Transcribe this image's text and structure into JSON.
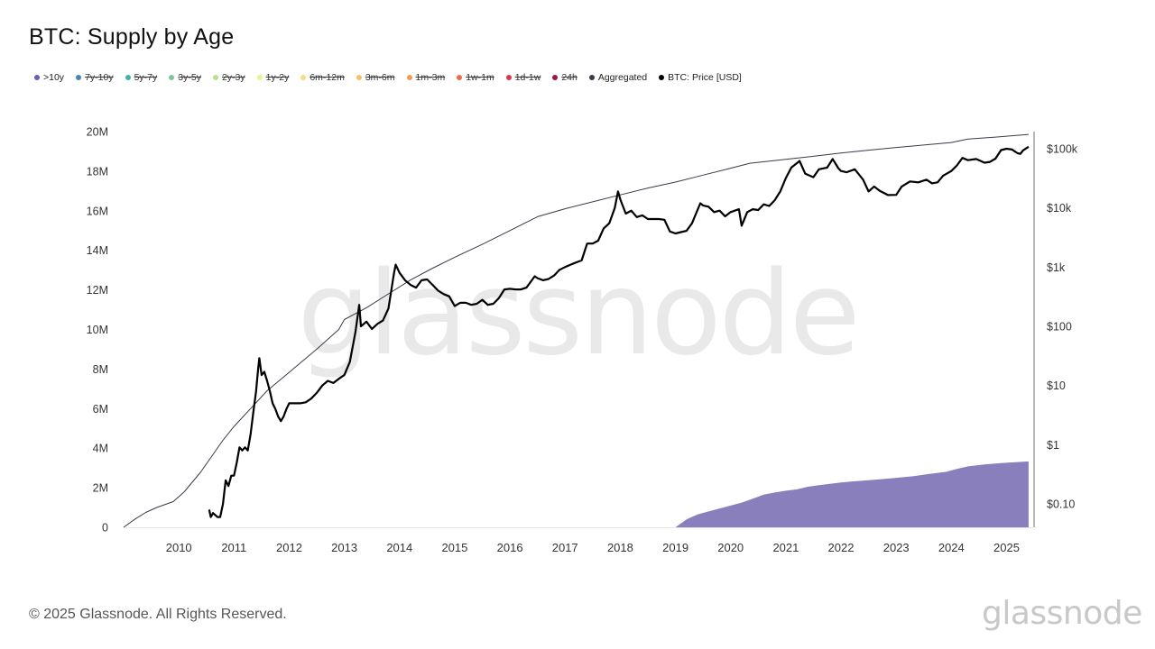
{
  "header": {
    "title": "BTC: Supply by Age"
  },
  "legend": [
    {
      "label": ">10y",
      "color": "#6a5fb0",
      "enabled": true
    },
    {
      "label": "7y-10y",
      "color": "#4a84b8",
      "enabled": false
    },
    {
      "label": "5y-7y",
      "color": "#3fb3a8",
      "enabled": false
    },
    {
      "label": "3y-5y",
      "color": "#79c89a",
      "enabled": false
    },
    {
      "label": "2y-3y",
      "color": "#b7e08c",
      "enabled": false
    },
    {
      "label": "1y-2y",
      "color": "#eef28e",
      "enabled": false
    },
    {
      "label": "6m-12m",
      "color": "#f8dc84",
      "enabled": false
    },
    {
      "label": "3m-6m",
      "color": "#f7bf6a",
      "enabled": false
    },
    {
      "label": "1m-3m",
      "color": "#f59a57",
      "enabled": false
    },
    {
      "label": "1w-1m",
      "color": "#ee6a4a",
      "enabled": false
    },
    {
      "label": "1d-1w",
      "color": "#d9394a",
      "enabled": false
    },
    {
      "label": "24h",
      "color": "#a0154a",
      "enabled": false
    },
    {
      "label": "Aggregated",
      "color": "#3a3a4a",
      "enabled": true
    },
    {
      "label": "BTC: Price [USD]",
      "color": "#000000",
      "enabled": true
    }
  ],
  "watermark": "glassnode",
  "footer": {
    "copyright": "© 2025 Glassnode. All Rights Reserved.",
    "logo": "glassnode"
  },
  "chart_data": {
    "type": "area",
    "title": "BTC: Supply by Age",
    "xlabel": "",
    "ylabel": "",
    "x_ticks": [
      "2010",
      "2011",
      "2012",
      "2013",
      "2014",
      "2015",
      "2016",
      "2017",
      "2018",
      "2019",
      "2020",
      "2021",
      "2022",
      "2023",
      "2024",
      "2025"
    ],
    "y_left_ticks": [
      "0",
      "2M",
      "4M",
      "6M",
      "8M",
      "10M",
      "12M",
      "14M",
      "16M",
      "18M",
      "20M"
    ],
    "y_left_range": [
      0,
      20000000
    ],
    "y_right_ticks": [
      "$0.10",
      "$1",
      "$10",
      "$100",
      "$1k",
      "$10k",
      "$100k"
    ],
    "y_right_range": [
      0.035,
      250000
    ],
    "y_right_scale": "log",
    "grid": false,
    "legend_position": "top-left",
    "series": [
      {
        "name": ">10y",
        "axis": "left",
        "style": "area",
        "color": "#8a7fbd",
        "points": [
          [
            2019.0,
            0
          ],
          [
            2019.2,
            400000
          ],
          [
            2019.4,
            650000
          ],
          [
            2019.6,
            800000
          ],
          [
            2019.8,
            950000
          ],
          [
            2020.0,
            1100000
          ],
          [
            2020.2,
            1250000
          ],
          [
            2020.4,
            1450000
          ],
          [
            2020.6,
            1650000
          ],
          [
            2020.8,
            1760000
          ],
          [
            2021.0,
            1850000
          ],
          [
            2021.2,
            1920000
          ],
          [
            2021.4,
            2050000
          ],
          [
            2021.6,
            2130000
          ],
          [
            2021.8,
            2200000
          ],
          [
            2022.0,
            2270000
          ],
          [
            2022.2,
            2320000
          ],
          [
            2022.5,
            2380000
          ],
          [
            2022.8,
            2450000
          ],
          [
            2023.0,
            2500000
          ],
          [
            2023.3,
            2580000
          ],
          [
            2023.6,
            2700000
          ],
          [
            2023.9,
            2800000
          ],
          [
            2024.1,
            2950000
          ],
          [
            2024.3,
            3080000
          ],
          [
            2024.6,
            3180000
          ],
          [
            2024.9,
            3250000
          ],
          [
            2025.2,
            3300000
          ],
          [
            2025.4,
            3330000
          ]
        ]
      },
      {
        "name": "Aggregated",
        "axis": "left",
        "style": "line",
        "color": "#3a3a4a",
        "points": [
          [
            2009.0,
            0
          ],
          [
            2009.2,
            400000
          ],
          [
            2009.4,
            750000
          ],
          [
            2009.6,
            1000000
          ],
          [
            2009.9,
            1300000
          ],
          [
            2010.1,
            1800000
          ],
          [
            2010.4,
            2800000
          ],
          [
            2010.6,
            3600000
          ],
          [
            2010.8,
            4400000
          ],
          [
            2011.0,
            5100000
          ],
          [
            2011.3,
            6000000
          ],
          [
            2011.6,
            6900000
          ],
          [
            2011.9,
            7600000
          ],
          [
            2012.2,
            8300000
          ],
          [
            2012.5,
            9000000
          ],
          [
            2012.9,
            10000000
          ],
          [
            2013.0,
            10500000
          ],
          [
            2013.4,
            11100000
          ],
          [
            2013.8,
            11800000
          ],
          [
            2014.2,
            12500000
          ],
          [
            2014.6,
            13100000
          ],
          [
            2015.0,
            13650000
          ],
          [
            2015.5,
            14300000
          ],
          [
            2016.0,
            15000000
          ],
          [
            2016.5,
            15700000
          ],
          [
            2017.0,
            16100000
          ],
          [
            2017.5,
            16450000
          ],
          [
            2018.0,
            16800000
          ],
          [
            2018.5,
            17150000
          ],
          [
            2019.0,
            17450000
          ],
          [
            2019.5,
            17800000
          ],
          [
            2020.0,
            18150000
          ],
          [
            2020.35,
            18400000
          ],
          [
            2021.0,
            18600000
          ],
          [
            2021.5,
            18750000
          ],
          [
            2022.0,
            18920000
          ],
          [
            2022.5,
            19060000
          ],
          [
            2023.0,
            19200000
          ],
          [
            2023.5,
            19320000
          ],
          [
            2024.0,
            19450000
          ],
          [
            2024.3,
            19620000
          ],
          [
            2024.8,
            19720000
          ],
          [
            2025.4,
            19860000
          ]
        ]
      },
      {
        "name": "BTC: Price [USD]",
        "axis": "right",
        "style": "line",
        "color": "#000000",
        "points": [
          [
            2010.55,
            0.08
          ],
          [
            2010.58,
            0.06
          ],
          [
            2010.62,
            0.07
          ],
          [
            2010.7,
            0.06
          ],
          [
            2010.75,
            0.06
          ],
          [
            2010.8,
            0.1
          ],
          [
            2010.85,
            0.25
          ],
          [
            2010.9,
            0.2
          ],
          [
            2010.95,
            0.3
          ],
          [
            2011.0,
            0.3
          ],
          [
            2011.05,
            0.5
          ],
          [
            2011.1,
            0.9
          ],
          [
            2011.15,
            0.8
          ],
          [
            2011.2,
            0.9
          ],
          [
            2011.25,
            0.8
          ],
          [
            2011.3,
            1.5
          ],
          [
            2011.35,
            3.5
          ],
          [
            2011.4,
            8
          ],
          [
            2011.44,
            20
          ],
          [
            2011.46,
            29
          ],
          [
            2011.5,
            15
          ],
          [
            2011.55,
            17
          ],
          [
            2011.6,
            12
          ],
          [
            2011.65,
            8
          ],
          [
            2011.7,
            5
          ],
          [
            2011.75,
            4
          ],
          [
            2011.8,
            3
          ],
          [
            2011.85,
            2.5
          ],
          [
            2011.9,
            3
          ],
          [
            2011.95,
            4
          ],
          [
            2012.0,
            5
          ],
          [
            2012.1,
            5
          ],
          [
            2012.2,
            5
          ],
          [
            2012.3,
            5.2
          ],
          [
            2012.4,
            6
          ],
          [
            2012.5,
            7.5
          ],
          [
            2012.6,
            10
          ],
          [
            2012.7,
            12
          ],
          [
            2012.8,
            11
          ],
          [
            2012.9,
            13
          ],
          [
            2013.0,
            15
          ],
          [
            2013.1,
            25
          ],
          [
            2013.2,
            80
          ],
          [
            2013.27,
            230
          ],
          [
            2013.3,
            100
          ],
          [
            2013.4,
            120
          ],
          [
            2013.5,
            90
          ],
          [
            2013.6,
            110
          ],
          [
            2013.7,
            125
          ],
          [
            2013.8,
            200
          ],
          [
            2013.9,
            800
          ],
          [
            2013.93,
            1100
          ],
          [
            2014.0,
            800
          ],
          [
            2014.1,
            600
          ],
          [
            2014.2,
            500
          ],
          [
            2014.3,
            450
          ],
          [
            2014.4,
            600
          ],
          [
            2014.5,
            620
          ],
          [
            2014.6,
            500
          ],
          [
            2014.7,
            400
          ],
          [
            2014.8,
            350
          ],
          [
            2014.9,
            320
          ],
          [
            2015.0,
            220
          ],
          [
            2015.1,
            250
          ],
          [
            2015.2,
            250
          ],
          [
            2015.3,
            230
          ],
          [
            2015.4,
            240
          ],
          [
            2015.5,
            280
          ],
          [
            2015.6,
            230
          ],
          [
            2015.7,
            240
          ],
          [
            2015.8,
            300
          ],
          [
            2015.9,
            420
          ],
          [
            2016.0,
            430
          ],
          [
            2016.1,
            420
          ],
          [
            2016.2,
            420
          ],
          [
            2016.3,
            450
          ],
          [
            2016.45,
            700
          ],
          [
            2016.5,
            650
          ],
          [
            2016.6,
            600
          ],
          [
            2016.7,
            630
          ],
          [
            2016.8,
            720
          ],
          [
            2016.9,
            900
          ],
          [
            2017.0,
            1000
          ],
          [
            2017.1,
            1100
          ],
          [
            2017.2,
            1200
          ],
          [
            2017.3,
            1300
          ],
          [
            2017.4,
            2500
          ],
          [
            2017.5,
            2500
          ],
          [
            2017.6,
            2800
          ],
          [
            2017.7,
            4500
          ],
          [
            2017.8,
            5500
          ],
          [
            2017.9,
            10000
          ],
          [
            2017.96,
            19000
          ],
          [
            2018.0,
            14000
          ],
          [
            2018.1,
            8000
          ],
          [
            2018.2,
            9000
          ],
          [
            2018.3,
            7000
          ],
          [
            2018.4,
            7500
          ],
          [
            2018.5,
            6500
          ],
          [
            2018.6,
            6500
          ],
          [
            2018.7,
            6500
          ],
          [
            2018.8,
            6300
          ],
          [
            2018.9,
            4000
          ],
          [
            2019.0,
            3700
          ],
          [
            2019.1,
            3900
          ],
          [
            2019.2,
            4100
          ],
          [
            2019.3,
            5500
          ],
          [
            2019.45,
            12000
          ],
          [
            2019.5,
            11000
          ],
          [
            2019.6,
            10500
          ],
          [
            2019.7,
            8500
          ],
          [
            2019.8,
            9000
          ],
          [
            2019.9,
            7200
          ],
          [
            2020.0,
            8500
          ],
          [
            2020.15,
            9500
          ],
          [
            2020.2,
            5000
          ],
          [
            2020.3,
            8500
          ],
          [
            2020.4,
            9500
          ],
          [
            2020.5,
            9200
          ],
          [
            2020.6,
            11500
          ],
          [
            2020.7,
            10800
          ],
          [
            2020.8,
            13500
          ],
          [
            2020.9,
            19000
          ],
          [
            2021.0,
            32000
          ],
          [
            2021.1,
            48000
          ],
          [
            2021.25,
            62000
          ],
          [
            2021.35,
            38000
          ],
          [
            2021.5,
            33000
          ],
          [
            2021.6,
            45000
          ],
          [
            2021.75,
            48000
          ],
          [
            2021.85,
            67000
          ],
          [
            2021.95,
            47000
          ],
          [
            2022.0,
            42000
          ],
          [
            2022.1,
            40000
          ],
          [
            2022.25,
            45000
          ],
          [
            2022.4,
            30000
          ],
          [
            2022.5,
            19000
          ],
          [
            2022.6,
            23000
          ],
          [
            2022.7,
            19500
          ],
          [
            2022.85,
            16500
          ],
          [
            2023.0,
            16600
          ],
          [
            2023.1,
            23000
          ],
          [
            2023.25,
            28000
          ],
          [
            2023.4,
            27000
          ],
          [
            2023.55,
            30000
          ],
          [
            2023.65,
            26000
          ],
          [
            2023.75,
            27000
          ],
          [
            2023.85,
            35000
          ],
          [
            2024.0,
            42000
          ],
          [
            2024.1,
            52000
          ],
          [
            2024.2,
            70000
          ],
          [
            2024.3,
            64000
          ],
          [
            2024.45,
            67000
          ],
          [
            2024.6,
            58000
          ],
          [
            2024.7,
            60000
          ],
          [
            2024.8,
            68000
          ],
          [
            2024.9,
            95000
          ],
          [
            2025.0,
            100000
          ],
          [
            2025.1,
            97000
          ],
          [
            2025.2,
            84000
          ],
          [
            2025.25,
            82000
          ],
          [
            2025.3,
            94000
          ],
          [
            2025.4,
            108000
          ]
        ]
      }
    ]
  }
}
